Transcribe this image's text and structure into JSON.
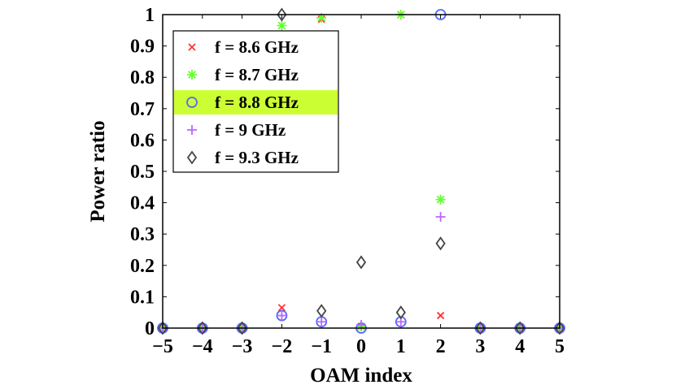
{
  "chart_data": {
    "type": "scatter",
    "title": "",
    "xlabel": "OAM index",
    "ylabel": "Power ratio",
    "xlim": [
      -5,
      5
    ],
    "ylim": [
      0,
      1
    ],
    "x_ticks": [
      "−5",
      "−4",
      "−3",
      "−2",
      "−1",
      "0",
      "1",
      "2",
      "3",
      "4",
      "5"
    ],
    "y_ticks": [
      "0",
      "0.1",
      "0.2",
      "0.3",
      "0.4",
      "0.5",
      "0.6",
      "0.7",
      "0.8",
      "0.9",
      "1"
    ],
    "x": [
      -5,
      -4,
      -3,
      -2,
      -1,
      0,
      1,
      2,
      3,
      4,
      5
    ],
    "legend_position": "top-left",
    "highlighted_series": "f = 8.8 GHz",
    "highlight_color": "#ccff33",
    "series": [
      {
        "name": "f = 8.6 GHz",
        "marker": "x",
        "color": "#ff3333",
        "values": [
          0,
          0,
          0,
          0.065,
          0.985,
          0.005,
          1.0,
          0.04,
          0,
          0,
          0
        ]
      },
      {
        "name": "f = 8.7 GHz",
        "marker": "asterisk",
        "color": "#66ff33",
        "values": [
          0,
          0,
          0,
          0.965,
          0.99,
          0.005,
          1.0,
          0.41,
          0,
          0,
          0
        ]
      },
      {
        "name": "f = 8.8 GHz",
        "marker": "circle",
        "color": "#5566ff",
        "values": [
          0,
          0,
          0,
          0.04,
          0.02,
          0.0,
          0.02,
          1.0,
          0,
          0,
          0
        ]
      },
      {
        "name": "f = 9 GHz",
        "marker": "plus",
        "color": "#bb66ff",
        "values": [
          0,
          0,
          0,
          0.04,
          0.02,
          0.01,
          0.02,
          0.355,
          0,
          0,
          0
        ]
      },
      {
        "name": "f = 9.3 GHz",
        "marker": "diamond",
        "color": "#444444",
        "values": [
          0,
          0,
          0,
          1.0,
          0.055,
          0.21,
          0.05,
          0.27,
          0,
          0,
          0
        ]
      }
    ]
  }
}
